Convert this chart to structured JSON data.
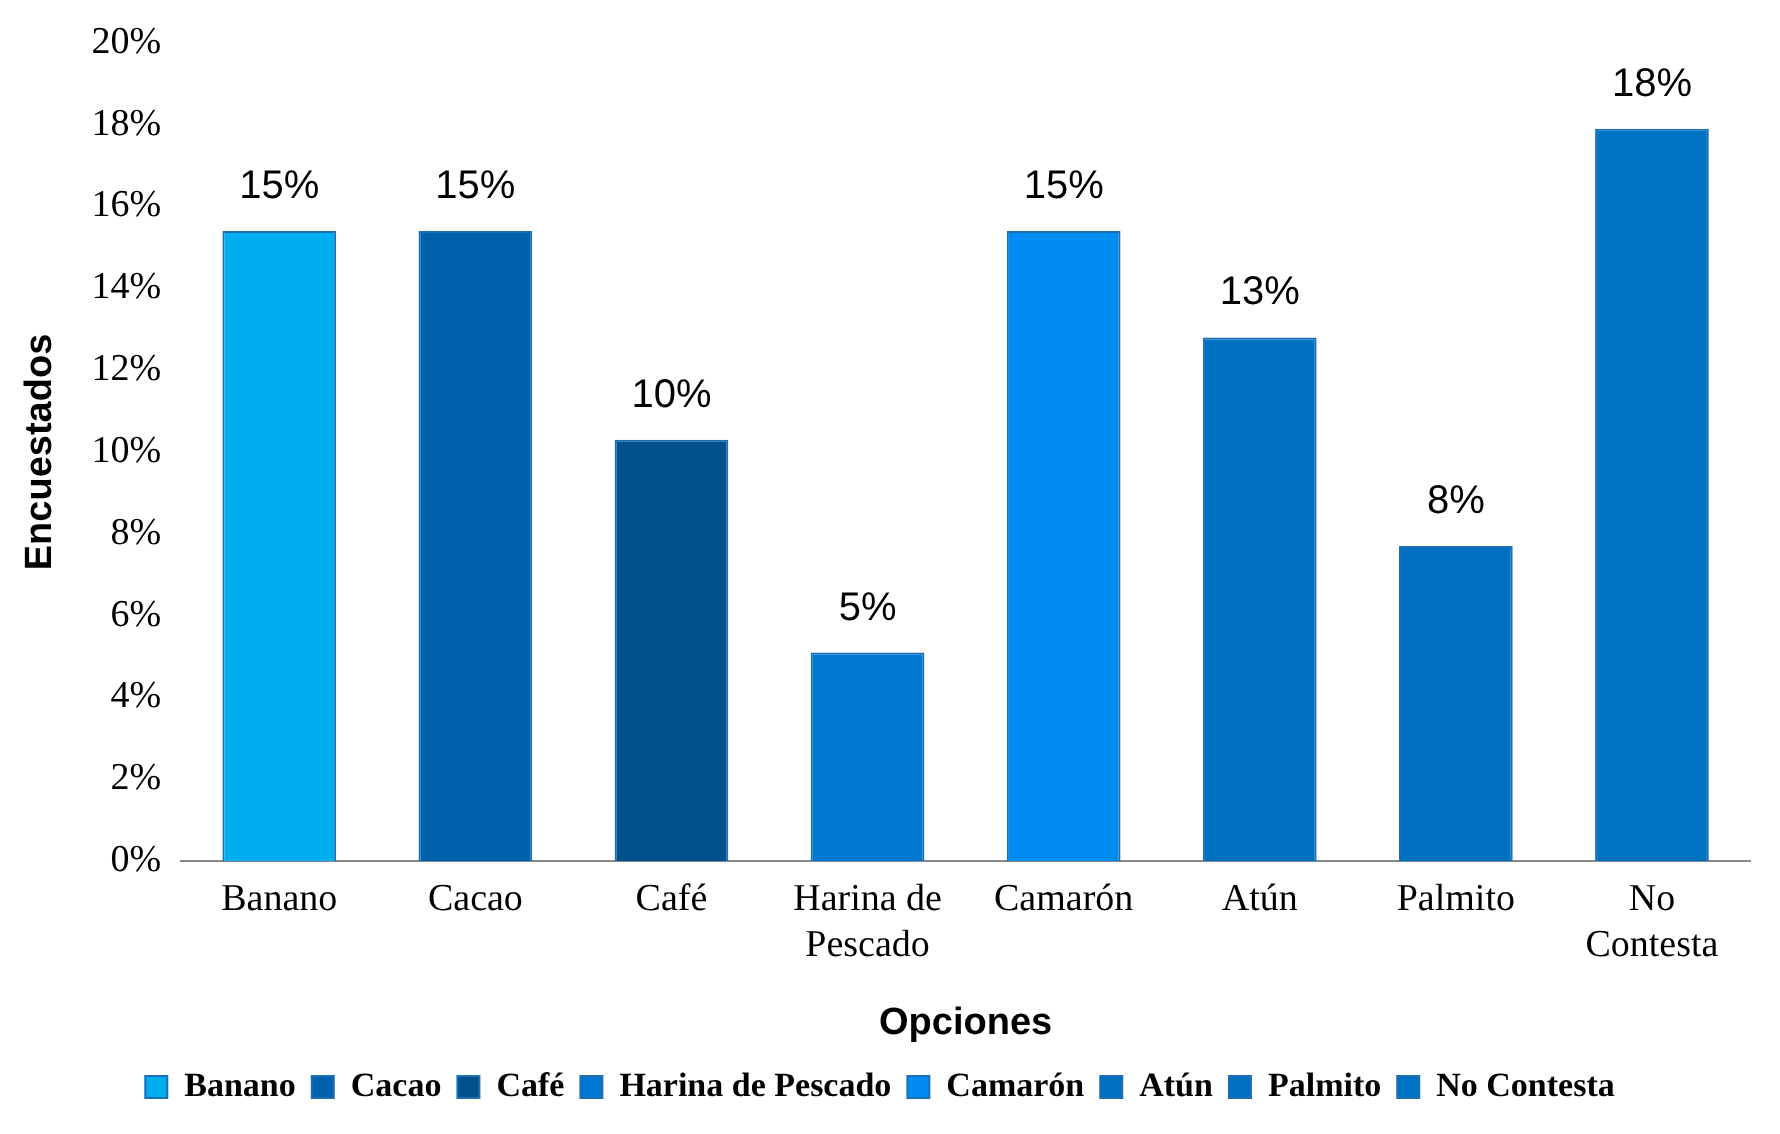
{
  "chart_data": {
    "type": "bar",
    "xlabel": "Opciones",
    "ylabel": "Encuestados",
    "categories": [
      "Banano",
      "Cacao",
      "Café",
      "Harina de Pescado",
      "Camarón",
      "Atún",
      "Palmito",
      "No Contesta"
    ],
    "stacked": true,
    "series": [
      {
        "name": "Banano",
        "color": "#00aeef",
        "values": [
          15.4,
          null,
          null,
          null,
          null,
          null,
          null,
          null
        ],
        "value_labels": [
          "15%",
          null,
          null,
          null,
          null,
          null,
          null,
          null
        ]
      },
      {
        "name": "Cacao",
        "color": "#0062ad",
        "values": [
          null,
          15.4,
          null,
          null,
          null,
          null,
          null,
          null
        ],
        "value_labels": [
          null,
          "15%",
          null,
          null,
          null,
          null,
          null,
          null
        ]
      },
      {
        "name": "Café",
        "color": "#00508c",
        "values": [
          null,
          null,
          10.3,
          null,
          null,
          null,
          null,
          null
        ],
        "value_labels": [
          null,
          null,
          "10%",
          null,
          null,
          null,
          null,
          null
        ]
      },
      {
        "name": "Harina de Pescado",
        "color": "#0078d4",
        "values": [
          null,
          null,
          null,
          5.1,
          null,
          null,
          null,
          null
        ],
        "value_labels": [
          null,
          null,
          null,
          "5%",
          null,
          null,
          null,
          null
        ]
      },
      {
        "name": "Camarón",
        "color": "#008cf0",
        "values": [
          null,
          null,
          null,
          null,
          15.4,
          null,
          null,
          null
        ],
        "value_labels": [
          null,
          null,
          null,
          null,
          "15%",
          null,
          null,
          null
        ]
      },
      {
        "name": "Atún",
        "color": "#0070c0",
        "values": [
          null,
          null,
          null,
          null,
          null,
          12.8,
          null,
          null
        ],
        "value_labels": [
          null,
          null,
          null,
          null,
          null,
          "13%",
          null,
          null
        ]
      },
      {
        "name": "Palmito",
        "color": "#0071c1",
        "values": [
          null,
          null,
          null,
          null,
          null,
          null,
          7.7,
          null
        ],
        "value_labels": [
          null,
          null,
          null,
          null,
          null,
          null,
          "8%",
          null
        ]
      },
      {
        "name": "No Contesta",
        "color": "#0072c2",
        "values": [
          null,
          null,
          null,
          null,
          null,
          null,
          null,
          17.9
        ],
        "value_labels": [
          null,
          null,
          null,
          null,
          null,
          null,
          null,
          "18%"
        ]
      }
    ],
    "ylim": [
      0,
      20
    ],
    "yticks": [
      {
        "value": 0,
        "label": "0%"
      },
      {
        "value": 2,
        "label": "2%"
      },
      {
        "value": 4,
        "label": "4%"
      },
      {
        "value": 6,
        "label": "6%"
      },
      {
        "value": 8,
        "label": "8%"
      },
      {
        "value": 10,
        "label": "10%"
      },
      {
        "value": 12,
        "label": "12%"
      },
      {
        "value": 14,
        "label": "14%"
      },
      {
        "value": 16,
        "label": "16%"
      },
      {
        "value": 18,
        "label": "18%"
      },
      {
        "value": 20,
        "label": "20%"
      }
    ],
    "legend": "bottom"
  }
}
